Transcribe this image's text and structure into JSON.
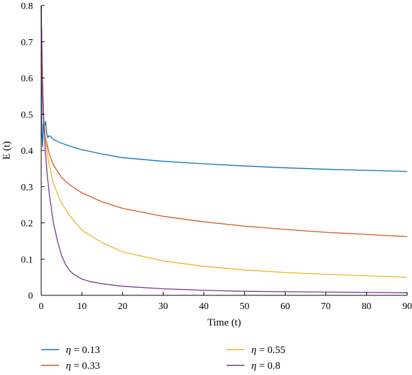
{
  "chart_data": {
    "type": "line",
    "title": "",
    "xlabel": "Time (t)",
    "ylabel": "E (t)",
    "xlim": [
      0,
      90
    ],
    "ylim": [
      0,
      0.8
    ],
    "xticks": [
      0,
      10,
      20,
      30,
      40,
      50,
      60,
      70,
      80,
      90
    ],
    "yticks": [
      0,
      0.1,
      0.2,
      0.3,
      0.4,
      0.5,
      0.6,
      0.7,
      0.8
    ],
    "grid": false,
    "legend_position": "bottom",
    "series": [
      {
        "name": "η = 0.13",
        "legend_symbol": "η",
        "legend_value": " = 0.13",
        "color": "#0072BD",
        "x": [
          0,
          0.15,
          0.35,
          0.5,
          0.7,
          0.9,
          1.1,
          1.3,
          1.6,
          1.9,
          2.2,
          2.6,
          3,
          4,
          5,
          7,
          10,
          15,
          20,
          30,
          40,
          50,
          60,
          70,
          80,
          90
        ],
        "y": [
          0.8,
          0.45,
          0.41,
          0.47,
          0.48,
          0.47,
          0.48,
          0.45,
          0.435,
          0.44,
          0.44,
          0.435,
          0.43,
          0.425,
          0.42,
          0.412,
          0.402,
          0.39,
          0.38,
          0.37,
          0.363,
          0.357,
          0.352,
          0.348,
          0.345,
          0.342
        ]
      },
      {
        "name": "η = 0.33",
        "legend_symbol": "η",
        "legend_value": " = 0.33",
        "color": "#D95319",
        "x": [
          0,
          0.2,
          0.5,
          1,
          2,
          3,
          5,
          7,
          10,
          15,
          20,
          30,
          40,
          50,
          60,
          70,
          80,
          90
        ],
        "y": [
          0.8,
          0.6,
          0.5,
          0.44,
          0.39,
          0.36,
          0.325,
          0.305,
          0.283,
          0.258,
          0.24,
          0.218,
          0.203,
          0.191,
          0.182,
          0.174,
          0.168,
          0.162
        ]
      },
      {
        "name": "η = 0.55",
        "legend_symbol": "η",
        "legend_value": " = 0.55",
        "color": "#EDB120",
        "x": [
          0,
          0.3,
          0.6,
          1,
          1.5,
          2,
          3,
          4,
          5,
          7,
          10,
          15,
          20,
          30,
          40,
          50,
          60,
          70,
          80,
          90
        ],
        "y": [
          0.8,
          0.6,
          0.5,
          0.44,
          0.39,
          0.36,
          0.31,
          0.28,
          0.255,
          0.22,
          0.18,
          0.145,
          0.12,
          0.095,
          0.08,
          0.07,
          0.063,
          0.058,
          0.054,
          0.05
        ]
      },
      {
        "name": "η = 0.8",
        "legend_symbol": "η",
        "legend_value": " = 0.8",
        "color": "#7E2F8E",
        "x": [
          0,
          0.3,
          0.6,
          1,
          1.5,
          2,
          3,
          4,
          5,
          6,
          7,
          8,
          10,
          12,
          15,
          20,
          30,
          40,
          50,
          60,
          70,
          80,
          90
        ],
        "y": [
          0.8,
          0.6,
          0.48,
          0.4,
          0.33,
          0.28,
          0.2,
          0.15,
          0.11,
          0.085,
          0.068,
          0.058,
          0.045,
          0.038,
          0.032,
          0.025,
          0.018,
          0.014,
          0.011,
          0.01,
          0.009,
          0.008,
          0.007
        ]
      }
    ]
  }
}
